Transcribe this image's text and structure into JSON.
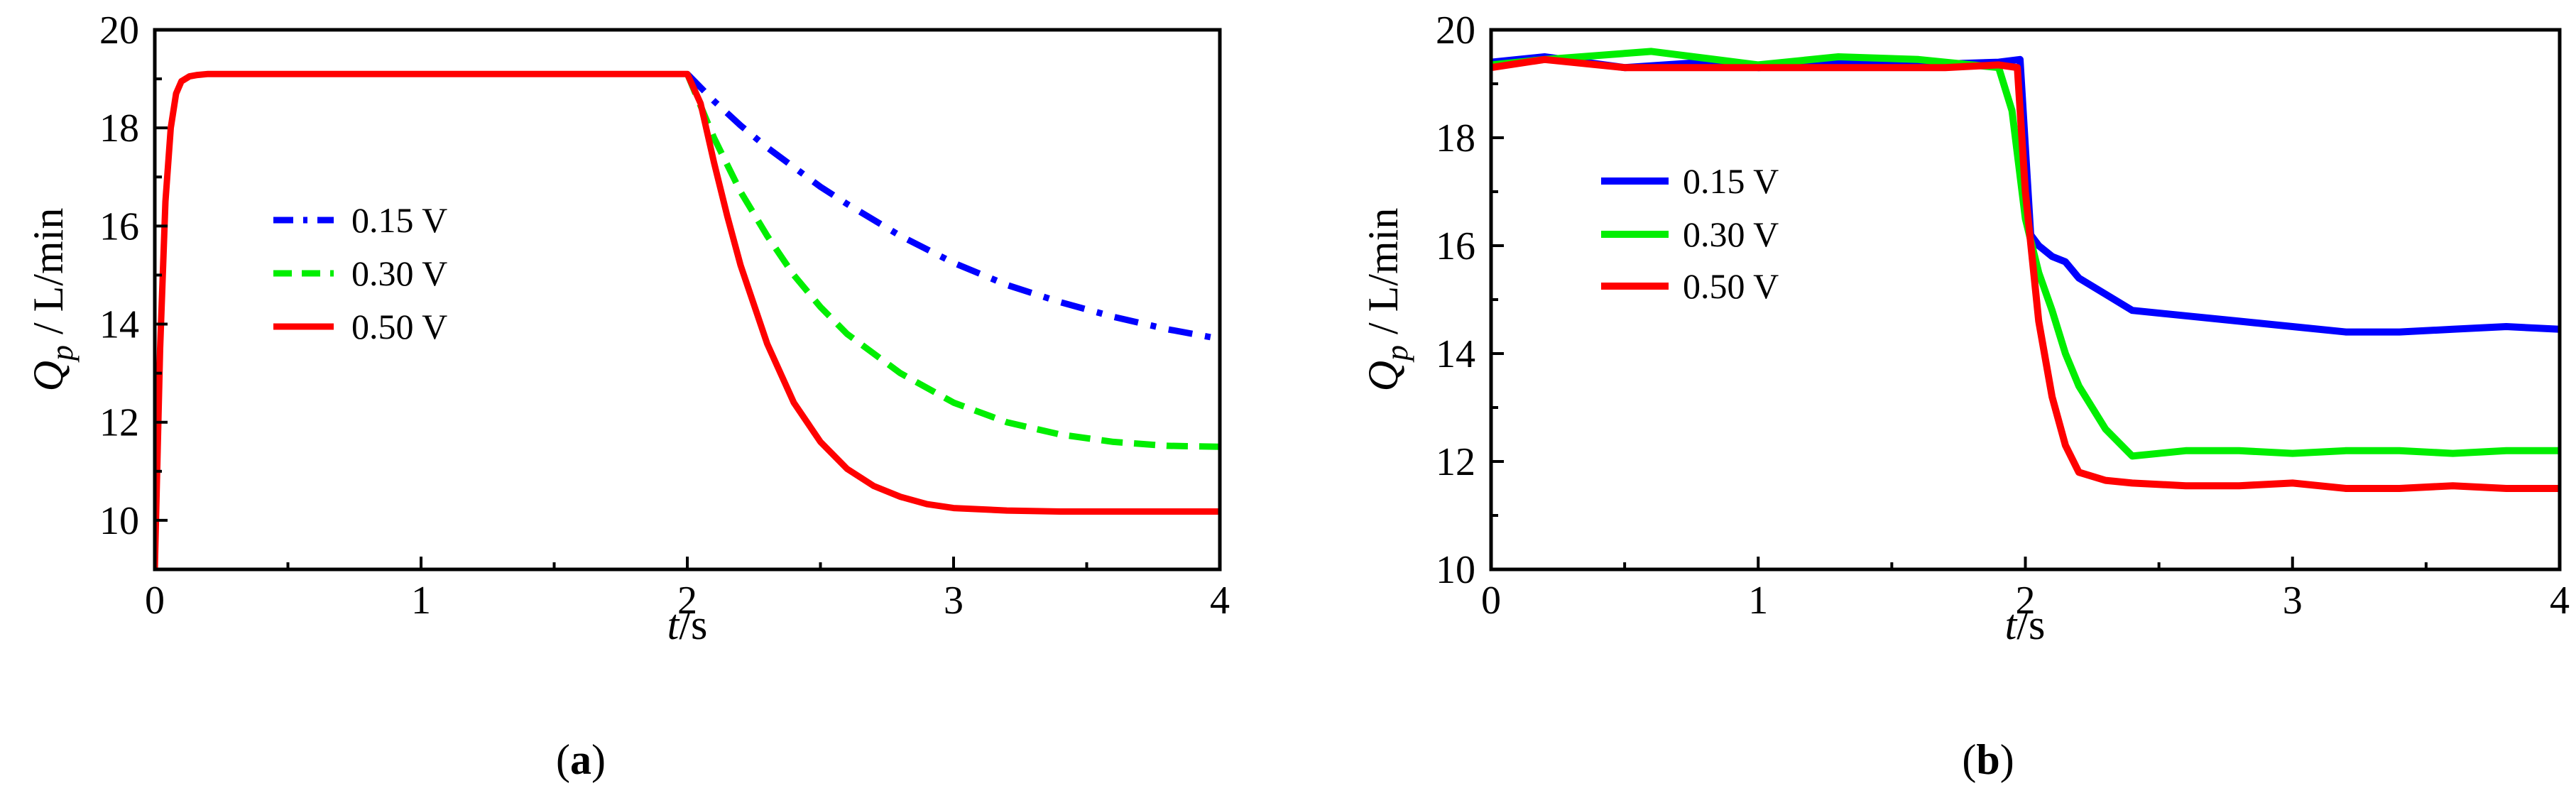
{
  "figure_caption_a": {
    "open": "(",
    "letter": "a",
    "close": ")"
  },
  "figure_caption_b": {
    "open": "(",
    "letter": "b",
    "close": ")"
  },
  "colors": {
    "v015": "#0000ff",
    "v030": "#00ee00",
    "v050": "#ff0000",
    "axis": "#000000"
  },
  "chart_data": [
    {
      "type": "line",
      "title": "",
      "xlabel": {
        "var": "t",
        "unit": "/s"
      },
      "ylabel": {
        "var": "Q",
        "sub": "p",
        "unit": " / L/min"
      },
      "xlim": [
        0,
        4
      ],
      "ylim": [
        9,
        20
      ],
      "xticks": [
        0,
        1,
        2,
        3,
        4
      ],
      "yticks": [
        10,
        12,
        14,
        16,
        18,
        20
      ],
      "legend_position": "left-middle",
      "series": [
        {
          "name": "0.15 V",
          "style": "dash-dot",
          "color": "#0000ff",
          "x": [
            2.0,
            2.1,
            2.2,
            2.3,
            2.4,
            2.5,
            2.6,
            2.8,
            3.0,
            3.2,
            3.4,
            3.6,
            3.8,
            4.0
          ],
          "y": [
            19.1,
            18.55,
            18.05,
            17.6,
            17.2,
            16.8,
            16.45,
            15.8,
            15.25,
            14.8,
            14.45,
            14.15,
            13.9,
            13.7
          ]
        },
        {
          "name": "0.30 V",
          "style": "dashed",
          "color": "#00ee00",
          "x": [
            2.0,
            2.1,
            2.2,
            2.3,
            2.4,
            2.5,
            2.6,
            2.8,
            3.0,
            3.2,
            3.4,
            3.6,
            3.8,
            4.0
          ],
          "y": [
            19.1,
            17.8,
            16.7,
            15.8,
            15.0,
            14.35,
            13.8,
            13.0,
            12.4,
            12.0,
            11.75,
            11.6,
            11.52,
            11.5
          ]
        },
        {
          "name": "0.50 V",
          "style": "solid",
          "color": "#ff0000",
          "x": [
            0.0,
            0.02,
            0.04,
            0.06,
            0.08,
            0.1,
            0.13,
            0.16,
            0.2,
            0.3,
            1.0,
            2.0,
            2.05,
            2.1,
            2.15,
            2.2,
            2.3,
            2.4,
            2.5,
            2.6,
            2.7,
            2.8,
            2.9,
            3.0,
            3.2,
            3.4,
            4.0
          ],
          "y": [
            9.0,
            13.5,
            16.5,
            18.0,
            18.7,
            18.95,
            19.05,
            19.08,
            19.1,
            19.1,
            19.1,
            19.1,
            18.5,
            17.3,
            16.2,
            15.2,
            13.6,
            12.4,
            11.6,
            11.05,
            10.7,
            10.48,
            10.33,
            10.25,
            10.2,
            10.18,
            10.18
          ]
        }
      ]
    },
    {
      "type": "line",
      "title": "",
      "xlabel": {
        "var": "t",
        "unit": "/s"
      },
      "ylabel": {
        "var": "Q",
        "sub": "p",
        "unit": " / L/min"
      },
      "xlim": [
        0,
        4
      ],
      "ylim": [
        10,
        20
      ],
      "xticks": [
        0,
        1,
        2,
        3,
        4
      ],
      "yticks": [
        10,
        12,
        14,
        16,
        18,
        20
      ],
      "legend_position": "left-middle",
      "series": [
        {
          "name": "0.15 V",
          "style": "solid",
          "color": "#0000ff",
          "x": [
            0.0,
            0.2,
            0.5,
            0.8,
            1.0,
            1.3,
            1.6,
            1.9,
            1.98,
            2.02,
            2.05,
            2.1,
            2.15,
            2.2,
            2.3,
            2.4,
            2.6,
            2.8,
            3.0,
            3.2,
            3.4,
            3.6,
            3.8,
            4.0
          ],
          "y": [
            19.4,
            19.5,
            19.3,
            19.4,
            19.3,
            19.4,
            19.35,
            19.4,
            19.45,
            16.2,
            16.0,
            15.8,
            15.7,
            15.4,
            15.1,
            14.8,
            14.7,
            14.6,
            14.5,
            14.4,
            14.4,
            14.45,
            14.5,
            14.45
          ]
        },
        {
          "name": "0.30 V",
          "style": "solid",
          "color": "#00ee00",
          "x": [
            0.0,
            0.2,
            0.6,
            1.0,
            1.3,
            1.6,
            1.9,
            1.95,
            2.0,
            2.05,
            2.1,
            2.15,
            2.2,
            2.3,
            2.4,
            2.6,
            2.8,
            3.0,
            3.2,
            3.4,
            3.6,
            3.8,
            4.0
          ],
          "y": [
            19.35,
            19.45,
            19.6,
            19.35,
            19.5,
            19.45,
            19.3,
            18.5,
            16.5,
            15.5,
            14.8,
            14.0,
            13.4,
            12.6,
            12.1,
            12.2,
            12.2,
            12.15,
            12.2,
            12.2,
            12.15,
            12.2,
            12.2
          ]
        },
        {
          "name": "0.50 V",
          "style": "solid",
          "color": "#ff0000",
          "x": [
            0.0,
            0.2,
            0.5,
            1.0,
            1.4,
            1.7,
            1.9,
            1.97,
            2.0,
            2.05,
            2.1,
            2.15,
            2.2,
            2.3,
            2.4,
            2.6,
            2.8,
            3.0,
            3.2,
            3.4,
            3.6,
            3.8,
            4.0
          ],
          "y": [
            19.3,
            19.45,
            19.3,
            19.3,
            19.3,
            19.3,
            19.35,
            19.3,
            17.0,
            14.6,
            13.2,
            12.3,
            11.8,
            11.65,
            11.6,
            11.55,
            11.55,
            11.6,
            11.5,
            11.5,
            11.55,
            11.5,
            11.5
          ]
        }
      ]
    }
  ]
}
